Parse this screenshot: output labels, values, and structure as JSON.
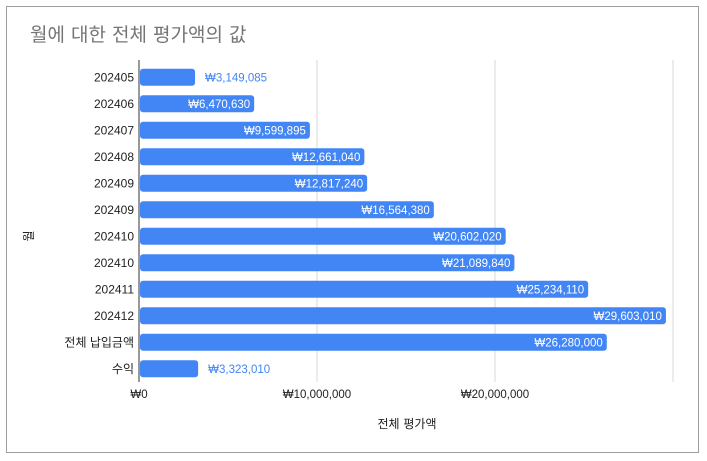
{
  "chart_data": {
    "type": "bar",
    "orientation": "horizontal",
    "title": "월에 대한 전체 평가액의 값",
    "xlabel": "전체 평가액",
    "ylabel": "월",
    "categories": [
      "202405",
      "202406",
      "202407",
      "202408",
      "202409",
      "202409",
      "202410",
      "202410",
      "202411",
      "202412",
      "전체 납입금액",
      "수익"
    ],
    "values": [
      3149085,
      6470630,
      9599895,
      12661040,
      12817240,
      16564380,
      20602020,
      21089840,
      25234110,
      29603010,
      26280000,
      3323010
    ],
    "data_labels": [
      "₩3,149,085",
      "₩6,470,630",
      "₩9,599,895",
      "₩12,661,040",
      "₩12,817,240",
      "₩16,564,380",
      "₩20,602,020",
      "₩21,089,840",
      "₩25,234,110",
      "₩29,603,010",
      "₩26,280,000",
      "₩3,323,010"
    ],
    "xlim": [
      0,
      30000000
    ],
    "x_ticks": [
      0,
      10000000,
      20000000
    ],
    "x_tick_labels": [
      "₩0",
      "₩10,000,000",
      "₩20,000,000"
    ],
    "grid": true,
    "bar_color": "#4285f4",
    "legend": "none"
  }
}
